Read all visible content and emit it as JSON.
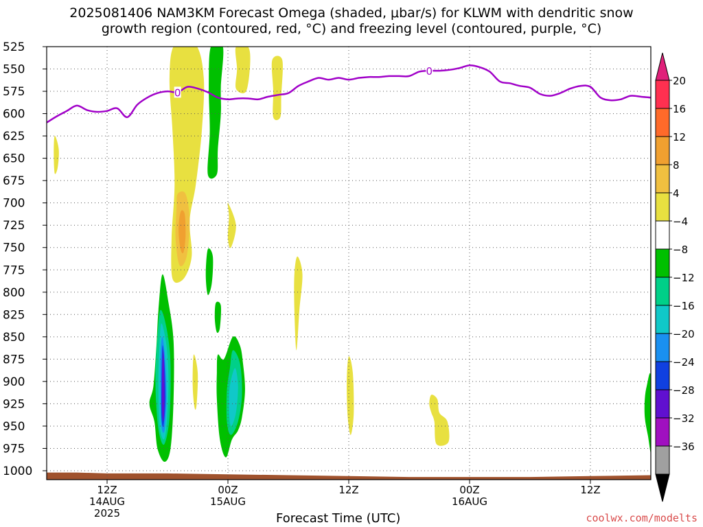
{
  "title_line_1": "2025081406 NAM3KM Forecast Omega (shaded, μbar/s) for KLWM with dendritic snow",
  "title_line_2": "growth region (contoured, red, °C) and freezing level (contoured, purple, °C)",
  "watermark": "coolwx.com/modelts",
  "chart_data": {
    "type": "heatmap",
    "xlabel": "Forecast Time (UTC)",
    "ylabel": "",
    "x_hours_range": [
      0,
      60
    ],
    "y_pressure_range": [
      525,
      1010
    ],
    "y_axis": "pressure (inverted)",
    "y_ticks": [
      525,
      550,
      575,
      600,
      625,
      650,
      675,
      700,
      725,
      750,
      775,
      800,
      825,
      850,
      875,
      900,
      925,
      950,
      975,
      1000
    ],
    "x_ticks": [
      {
        "hour": 6,
        "lines": [
          "12Z",
          "14AUG",
          "2025"
        ]
      },
      {
        "hour": 18,
        "lines": [
          "00Z",
          "15AUG"
        ]
      },
      {
        "hour": 30,
        "lines": [
          "12Z"
        ]
      },
      {
        "hour": 42,
        "lines": [
          "00Z",
          "16AUG"
        ]
      },
      {
        "hour": 54,
        "lines": [
          "12Z"
        ]
      }
    ],
    "grid": true,
    "colorbar": {
      "labels": [
        20,
        16,
        12,
        8,
        4,
        -4,
        -8,
        -12,
        -16,
        -20,
        -24,
        -28,
        -32,
        -36
      ],
      "colors": [
        "#ff3050",
        "#ff6a2a",
        "#f0a030",
        "#f0c040",
        "#e8e040",
        "#ffffff",
        "#00c000",
        "#00d088",
        "#10c8c8",
        "#1a90f0",
        "#1040e0",
        "#6010d0",
        "#a010c0",
        "#a0a0a0"
      ],
      "top_arrow_color": "#e0207a",
      "bottom_arrow_color": "#000000"
    },
    "freezing_level": {
      "color": "#a000c8",
      "label": "0",
      "label_at": [
        [
          13,
          576
        ],
        [
          38,
          552
        ]
      ],
      "points": [
        [
          0,
          610
        ],
        [
          1,
          603
        ],
        [
          2,
          597
        ],
        [
          3,
          591
        ],
        [
          4,
          596
        ],
        [
          5,
          598
        ],
        [
          6,
          597
        ],
        [
          7,
          594
        ],
        [
          8,
          604
        ],
        [
          9,
          590
        ],
        [
          10,
          582
        ],
        [
          11,
          577
        ],
        [
          12,
          575
        ],
        [
          13,
          576
        ],
        [
          14,
          570
        ],
        [
          15,
          572
        ],
        [
          16,
          576
        ],
        [
          17,
          582
        ],
        [
          18,
          584
        ],
        [
          19,
          583
        ],
        [
          20,
          583
        ],
        [
          21,
          584
        ],
        [
          22,
          581
        ],
        [
          23,
          579
        ],
        [
          24,
          577
        ],
        [
          25,
          569
        ],
        [
          26,
          564
        ],
        [
          27,
          560
        ],
        [
          28,
          562
        ],
        [
          29,
          560
        ],
        [
          30,
          562
        ],
        [
          31,
          560
        ],
        [
          32,
          559
        ],
        [
          33,
          559
        ],
        [
          34,
          558
        ],
        [
          35,
          558
        ],
        [
          36,
          558
        ],
        [
          37,
          553
        ],
        [
          38,
          552
        ],
        [
          39,
          552
        ],
        [
          40,
          551
        ],
        [
          41,
          549
        ],
        [
          42,
          546
        ],
        [
          43,
          548
        ],
        [
          44,
          553
        ],
        [
          45,
          564
        ],
        [
          46,
          566
        ],
        [
          47,
          569
        ],
        [
          48,
          571
        ],
        [
          49,
          578
        ],
        [
          50,
          580
        ],
        [
          51,
          577
        ],
        [
          52,
          572
        ],
        [
          53,
          569
        ],
        [
          54,
          570
        ],
        [
          55,
          582
        ],
        [
          56,
          585
        ],
        [
          57,
          584
        ],
        [
          58,
          580
        ],
        [
          59,
          581
        ],
        [
          60,
          582
        ]
      ]
    },
    "ground": {
      "color": "#a0522d",
      "points": [
        [
          0,
          1002
        ],
        [
          3,
          1002
        ],
        [
          6,
          1003
        ],
        [
          12,
          1003
        ],
        [
          18,
          1004
        ],
        [
          24,
          1005
        ],
        [
          30,
          1006
        ],
        [
          36,
          1007
        ],
        [
          42,
          1007
        ],
        [
          48,
          1007
        ],
        [
          54,
          1006
        ],
        [
          60,
          1005
        ]
      ]
    },
    "omega_features": [
      {
        "v": 4,
        "pts": [
          [
            12.7,
            523
          ],
          [
            14.8,
            523
          ],
          [
            15.6,
            560
          ],
          [
            15.4,
            620
          ],
          [
            14.8,
            680
          ],
          [
            14.2,
            720
          ],
          [
            14.4,
            760
          ],
          [
            13.6,
            785
          ],
          [
            12.5,
            785
          ],
          [
            12.4,
            740
          ],
          [
            12.7,
            680
          ],
          [
            12.5,
            620
          ],
          [
            12.2,
            560
          ]
        ]
      },
      {
        "v": 8,
        "pts": [
          [
            13.0,
            690
          ],
          [
            13.8,
            690
          ],
          [
            14.2,
            720
          ],
          [
            13.9,
            760
          ],
          [
            13.2,
            770
          ],
          [
            12.8,
            740
          ],
          [
            12.9,
            705
          ]
        ]
      },
      {
        "v": 12,
        "pts": [
          [
            13.3,
            710
          ],
          [
            13.7,
            712
          ],
          [
            13.8,
            735
          ],
          [
            13.6,
            755
          ],
          [
            13.3,
            752
          ],
          [
            13.1,
            730
          ]
        ]
      },
      {
        "v": 4,
        "pts": [
          [
            18.8,
            525
          ],
          [
            20.0,
            525
          ],
          [
            20.2,
            545
          ],
          [
            19.8,
            575
          ],
          [
            18.8,
            572
          ],
          [
            18.9,
            550
          ]
        ]
      },
      {
        "v": 4,
        "pts": [
          [
            22.4,
            540
          ],
          [
            23.4,
            540
          ],
          [
            23.3,
            580
          ],
          [
            23.2,
            604
          ],
          [
            22.5,
            604
          ],
          [
            22.5,
            575
          ]
        ]
      },
      {
        "v": 4,
        "pts": [
          [
            0.8,
            625
          ],
          [
            1.2,
            640
          ],
          [
            1.1,
            660
          ],
          [
            0.8,
            667
          ],
          [
            0.7,
            645
          ]
        ]
      },
      {
        "v": -4,
        "pts": [
          [
            16.3,
            525
          ],
          [
            17.5,
            525
          ],
          [
            17.3,
            570
          ],
          [
            17.3,
            600
          ],
          [
            17.0,
            640
          ],
          [
            16.9,
            668
          ],
          [
            16.0,
            668
          ],
          [
            16.2,
            620
          ],
          [
            16.1,
            570
          ]
        ]
      },
      {
        "v": 4,
        "pts": [
          [
            18.0,
            700
          ],
          [
            18.8,
            725
          ],
          [
            18.3,
            750
          ],
          [
            18.0,
            740
          ],
          [
            18.1,
            715
          ]
        ]
      },
      {
        "v": 4,
        "pts": [
          [
            24.9,
            760
          ],
          [
            25.4,
            780
          ],
          [
            25.1,
            820
          ],
          [
            24.8,
            865
          ],
          [
            24.6,
            820
          ],
          [
            24.6,
            780
          ]
        ]
      },
      {
        "v": -4,
        "pts": [
          [
            16.0,
            752
          ],
          [
            16.5,
            760
          ],
          [
            16.4,
            790
          ],
          [
            16.0,
            803
          ],
          [
            15.8,
            780
          ]
        ]
      },
      {
        "v": -4,
        "pts": [
          [
            16.8,
            812
          ],
          [
            17.3,
            815
          ],
          [
            17.2,
            840
          ],
          [
            16.9,
            845
          ],
          [
            16.7,
            830
          ]
        ]
      },
      {
        "v": -4,
        "pts": [
          [
            11.5,
            780
          ],
          [
            12.1,
            812
          ],
          [
            12.6,
            855
          ],
          [
            12.6,
            920
          ],
          [
            12.3,
            975
          ],
          [
            11.7,
            990
          ],
          [
            11.0,
            975
          ],
          [
            10.7,
            945
          ],
          [
            10.2,
            925
          ],
          [
            10.6,
            905
          ],
          [
            10.9,
            860
          ],
          [
            11.1,
            820
          ]
        ]
      },
      {
        "v": -8,
        "pts": [
          [
            11.3,
            820
          ],
          [
            11.9,
            840
          ],
          [
            12.3,
            880
          ],
          [
            12.2,
            940
          ],
          [
            11.7,
            970
          ],
          [
            11.2,
            960
          ],
          [
            10.9,
            930
          ],
          [
            10.8,
            890
          ],
          [
            11.0,
            850
          ]
        ]
      },
      {
        "v": -12,
        "pts": [
          [
            11.4,
            835
          ],
          [
            11.9,
            860
          ],
          [
            12.1,
            900
          ],
          [
            11.9,
            950
          ],
          [
            11.6,
            965
          ],
          [
            11.2,
            948
          ],
          [
            11.1,
            900
          ],
          [
            11.2,
            860
          ]
        ]
      },
      {
        "v": -16,
        "pts": [
          [
            11.5,
            850
          ],
          [
            11.8,
            880
          ],
          [
            11.9,
            920
          ],
          [
            11.7,
            955
          ],
          [
            11.4,
            950
          ],
          [
            11.3,
            910
          ],
          [
            11.3,
            870
          ]
        ]
      },
      {
        "v": -20,
        "pts": [
          [
            11.5,
            860
          ],
          [
            11.7,
            880
          ],
          [
            11.8,
            920
          ],
          [
            11.6,
            950
          ],
          [
            11.4,
            940
          ],
          [
            11.4,
            900
          ]
        ]
      },
      {
        "v": -24,
        "pts": [
          [
            11.55,
            865
          ],
          [
            11.65,
            880
          ],
          [
            11.7,
            920
          ],
          [
            11.6,
            945
          ],
          [
            11.45,
            930
          ],
          [
            11.45,
            895
          ]
        ]
      },
      {
        "v": 4,
        "pts": [
          [
            14.6,
            870
          ],
          [
            15.0,
            890
          ],
          [
            14.9,
            925
          ],
          [
            14.7,
            930
          ],
          [
            14.5,
            905
          ]
        ]
      },
      {
        "v": -4,
        "pts": [
          [
            17.0,
            870
          ],
          [
            17.6,
            875
          ],
          [
            18.5,
            850
          ],
          [
            19.2,
            860
          ],
          [
            19.5,
            880
          ],
          [
            19.7,
            910
          ],
          [
            19.4,
            940
          ],
          [
            19.0,
            955
          ],
          [
            18.4,
            965
          ],
          [
            17.8,
            985
          ],
          [
            17.2,
            965
          ],
          [
            16.9,
            920
          ],
          [
            16.9,
            890
          ]
        ]
      },
      {
        "v": -8,
        "pts": [
          [
            18.5,
            865
          ],
          [
            19.2,
            880
          ],
          [
            19.4,
            915
          ],
          [
            19.0,
            945
          ],
          [
            18.3,
            960
          ],
          [
            17.9,
            945
          ],
          [
            17.9,
            910
          ],
          [
            18.2,
            885
          ]
        ]
      },
      {
        "v": -12,
        "pts": [
          [
            18.7,
            885
          ],
          [
            19.0,
            905
          ],
          [
            18.8,
            935
          ],
          [
            18.3,
            950
          ],
          [
            18.1,
            930
          ],
          [
            18.2,
            905
          ]
        ]
      },
      {
        "v": 4,
        "pts": [
          [
            30.0,
            872
          ],
          [
            30.4,
            890
          ],
          [
            30.5,
            935
          ],
          [
            30.2,
            960
          ],
          [
            29.9,
            940
          ],
          [
            29.8,
            900
          ]
        ]
      },
      {
        "v": 4,
        "pts": [
          [
            38.2,
            915
          ],
          [
            38.8,
            920
          ],
          [
            39.0,
            935
          ],
          [
            39.8,
            945
          ],
          [
            39.9,
            968
          ],
          [
            38.7,
            970
          ],
          [
            38.5,
            945
          ],
          [
            38.2,
            935
          ],
          [
            38.0,
            925
          ]
        ]
      },
      {
        "v": -4,
        "pts": [
          [
            59.6,
            905
          ],
          [
            60.0,
            895
          ],
          [
            60.1,
            980
          ],
          [
            59.7,
            960
          ],
          [
            59.4,
            940
          ],
          [
            59.4,
            920
          ]
        ]
      }
    ]
  }
}
